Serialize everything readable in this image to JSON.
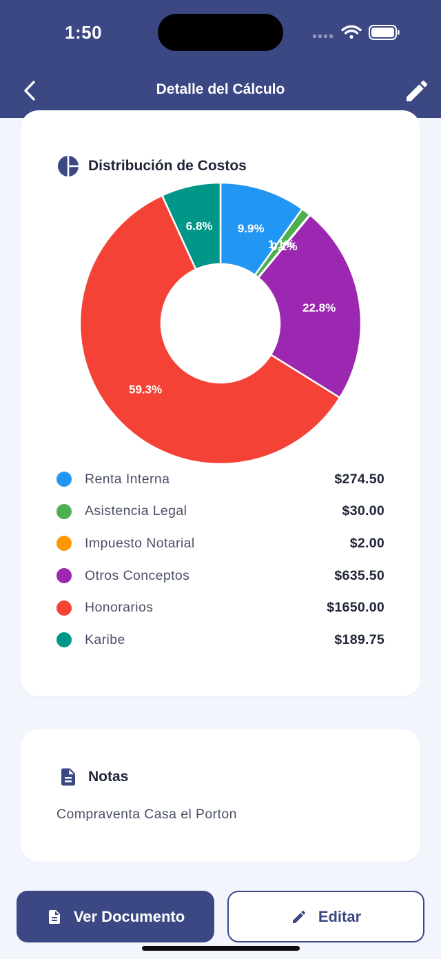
{
  "status_bar": {
    "time": "1:50"
  },
  "header": {
    "title": "Detalle del Cálculo",
    "back_icon": "chevron-left-icon",
    "edit_icon": "pencil-icon"
  },
  "costs_card": {
    "title": "Distribución de Costos",
    "icon": "pie-chart-icon"
  },
  "chart_data": {
    "type": "pie",
    "title": "Distribución de Costos",
    "donut": true,
    "categories": [
      "Renta Interna",
      "Asistencia Legal",
      "Impuesto Notarial",
      "Otros Conceptos",
      "Honorarios",
      "Karibe"
    ],
    "values": [
      274.5,
      30.0,
      2.0,
      635.5,
      1650.0,
      189.75
    ],
    "data_labels": [
      "9.9%",
      "1.1%",
      "0.1%",
      "22.8%",
      "59.3%",
      "6.8%"
    ],
    "colors": [
      "#2196f3",
      "#4caf50",
      "#ff9800",
      "#9c27b0",
      "#f44336",
      "#009688"
    ],
    "amounts": [
      "$274.50",
      "$30.00",
      "$2.00",
      "$635.50",
      "$1650.00",
      "$189.75"
    ]
  },
  "notes_card": {
    "title": "Notas",
    "icon": "document-icon",
    "text": "Compraventa Casa el Porton"
  },
  "actions": {
    "view_document": "Ver Documento",
    "view_document_icon": "document-icon",
    "edit": "Editar",
    "edit_icon": "pencil-icon"
  }
}
